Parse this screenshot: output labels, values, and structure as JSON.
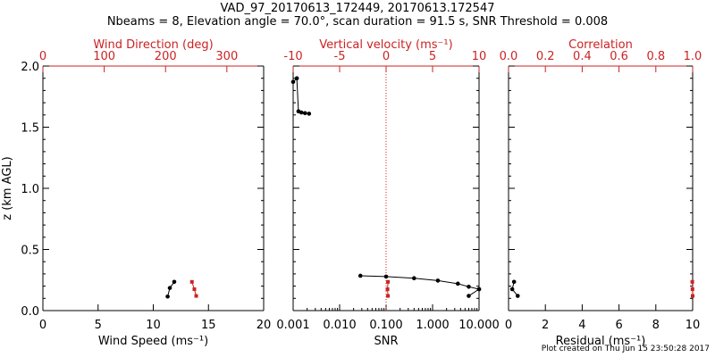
{
  "header": {
    "title": "VAD_97_20170613_172449, 20170613.172547",
    "subtitle": "Nbeams = 8, Elevation angle = 70.0°, scan duration = 91.5 s, SNR Threshold = 0.008"
  },
  "footer": {
    "text": "Plot created on Thu Jun 15 23:50:28 2017"
  },
  "colors": {
    "axes": "#000000",
    "secondary": "#cc2222"
  },
  "chart_data": [
    {
      "type": "line",
      "panel": "wind",
      "xlabel": "Wind Speed (ms⁻¹)",
      "top_xlabel": "Wind Direction (deg)",
      "ylabel": "z (km AGL)",
      "xlim": [
        0,
        20
      ],
      "top_xlim": [
        0,
        360
      ],
      "ylim": [
        0,
        2
      ],
      "x_ticks": [
        "0",
        "5",
        "10",
        "15",
        "20"
      ],
      "top_ticks": [
        "0",
        "100",
        "200",
        "300"
      ],
      "y_ticks": [
        "0.0",
        "0.5",
        "1.0",
        "1.5",
        "2.0"
      ],
      "series": [
        {
          "axis": "bottom",
          "color": "#000000",
          "x": [
            11.3,
            11.5,
            11.9
          ],
          "y": [
            0.115,
            0.185,
            0.235
          ]
        },
        {
          "axis": "top",
          "color": "#cc2222",
          "x": [
            243,
            247,
            250
          ],
          "y": [
            0.235,
            0.175,
            0.12
          ]
        }
      ]
    },
    {
      "type": "line",
      "panel": "snr",
      "xlabel": "SNR",
      "top_xlabel": "Vertical velocity (ms⁻¹)",
      "xlim": [
        0.001,
        10
      ],
      "xscale": "log",
      "top_xlim": [
        -10,
        10
      ],
      "ylim": [
        0,
        2
      ],
      "x_ticks": [
        "0.001",
        "0.010",
        "0.100",
        "1.000",
        "10.000"
      ],
      "top_ticks": [
        "-10",
        "-5",
        "0",
        "5",
        "10"
      ],
      "reference_line": {
        "axis": "top",
        "value": 0,
        "style": "dotted"
      },
      "series": [
        {
          "axis": "bottom",
          "color": "#000000",
          "x": [
            0.001,
            0.0012,
            0.0013,
            0.0015,
            0.0018,
            0.0022
          ],
          "y": [
            1.87,
            1.9,
            1.63,
            1.62,
            1.615,
            1.61
          ]
        },
        {
          "axis": "bottom",
          "color": "#000000",
          "x": [
            0.028,
            0.1,
            0.4,
            1.3,
            3.5,
            6.0,
            10.0
          ],
          "y": [
            0.285,
            0.278,
            0.265,
            0.245,
            0.22,
            0.195,
            0.175
          ]
        },
        {
          "axis": "bottom",
          "color": "#000000",
          "x": [
            6.0,
            10.0
          ],
          "y": [
            0.12,
            0.175
          ]
        },
        {
          "axis": "top",
          "color": "#cc2222",
          "x": [
            0.2,
            0.15,
            0.2
          ],
          "y": [
            0.235,
            0.175,
            0.12
          ]
        }
      ]
    },
    {
      "type": "line",
      "panel": "residual",
      "xlabel": "Residual (ms⁻¹)",
      "top_xlabel": "Correlation",
      "xlim": [
        0,
        10
      ],
      "top_xlim": [
        0,
        1
      ],
      "ylim": [
        0,
        2
      ],
      "x_ticks": [
        "0",
        "2",
        "4",
        "6",
        "8",
        "10"
      ],
      "top_ticks": [
        "0.0",
        "0.2",
        "0.4",
        "0.6",
        "0.8",
        "1.0"
      ],
      "series": [
        {
          "axis": "bottom",
          "color": "#000000",
          "x": [
            0.5,
            0.2,
            0.3
          ],
          "y": [
            0.12,
            0.175,
            0.235
          ]
        },
        {
          "axis": "top",
          "color": "#cc2222",
          "x": [
            0.998,
            0.999,
            1.0
          ],
          "y": [
            0.235,
            0.175,
            0.12
          ]
        }
      ]
    }
  ]
}
